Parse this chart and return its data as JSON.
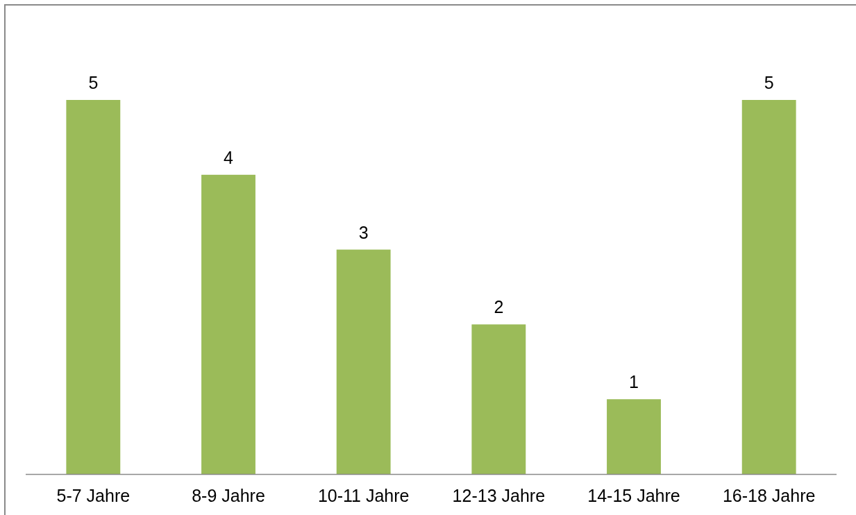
{
  "chart_data": {
    "type": "bar",
    "categories": [
      "5-7 Jahre",
      "8-9 Jahre",
      "10-11 Jahre",
      "12-13 Jahre",
      "14-15 Jahre",
      "16-18 Jahre"
    ],
    "values": [
      5,
      4,
      3,
      2,
      1,
      5
    ],
    "color": "#9bbb59",
    "data_labels": true
  }
}
